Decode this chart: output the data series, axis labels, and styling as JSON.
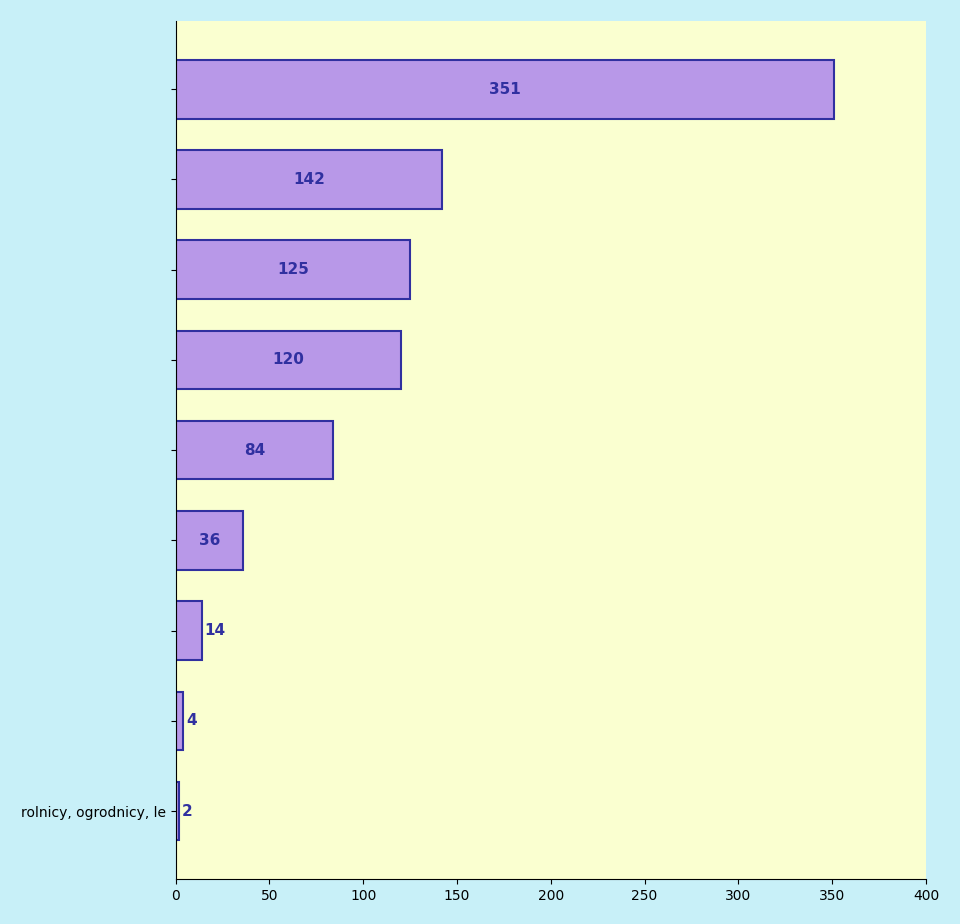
{
  "values": [
    351,
    142,
    125,
    120,
    84,
    36,
    14,
    4,
    2
  ],
  "labels": [
    "",
    "",
    "",
    "",
    "",
    "",
    "",
    "",
    "rolnicy, ogrodnicy, le"
  ],
  "bar_color_left": "#C8A0E8",
  "bar_color_right": "#A090D8",
  "bar_edge_color": "#3030A0",
  "bar_edge_width": 1.5,
  "background_color": "#C8F0F8",
  "plot_bg_color": "#FAFFD0",
  "xlim": [
    0,
    400
  ],
  "xticks": [
    0,
    50,
    100,
    150,
    200,
    250,
    300,
    350,
    400
  ],
  "label_color": "#3030A0",
  "label_fontsize": 11,
  "tick_fontsize": 10,
  "bar_height": 0.65
}
